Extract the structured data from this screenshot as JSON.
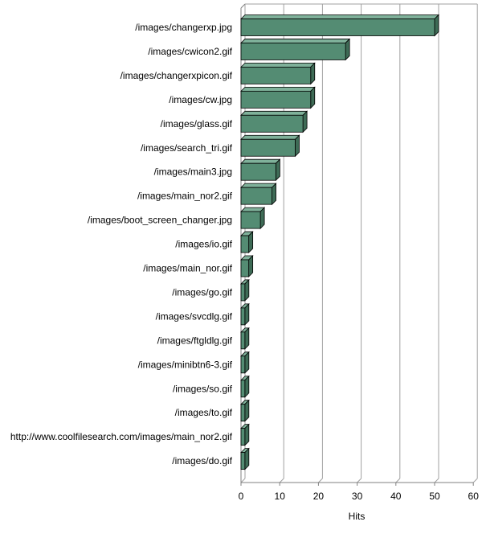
{
  "chart_data": {
    "type": "bar",
    "orientation": "horizontal",
    "style": "3d",
    "categories": [
      "/images/changerxp.jpg",
      "/images/cwicon2.gif",
      "/images/changerxpicon.gif",
      "/images/cw.jpg",
      "/images/glass.gif",
      "/images/search_tri.gif",
      "/images/main3.jpg",
      "/images/main_nor2.gif",
      "/images/boot_screen_changer.jpg",
      "/images/io.gif",
      "/images/main_nor.gif",
      "/images/go.gif",
      "/images/svcdlg.gif",
      "/images/ftgldlg.gif",
      "/images/minibtn6-3.gif",
      "/images/so.gif",
      "/images/to.gif",
      "http://www.coolfilesearch.com/images/main_nor2.gif",
      "/images/do.gif"
    ],
    "values": [
      50,
      27,
      18,
      18,
      16,
      14,
      9,
      8,
      5,
      2,
      2,
      1,
      1,
      1,
      1,
      1,
      1,
      1,
      1
    ],
    "xlabel": "Hits",
    "ylabel": "",
    "xlim": [
      0,
      60
    ],
    "x_ticks": [
      0,
      10,
      20,
      30,
      40,
      50,
      60
    ],
    "grid": true,
    "bar_color": "#548c73",
    "bar_top_color": "#7fb19a",
    "bar_side_color": "#3e6b56",
    "grid_color": "#a0a0a0"
  }
}
